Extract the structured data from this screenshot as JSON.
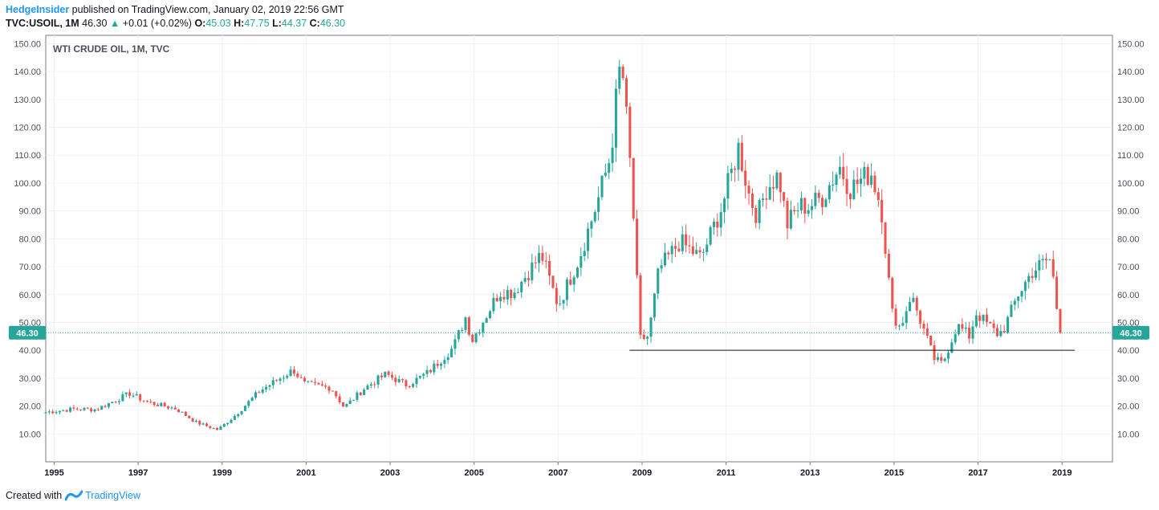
{
  "header": {
    "author": "HedgeInsider",
    "published": " published on TradingView.com, January 02, 2019 22:56 GMT",
    "symbol": "TVC:USOIL, 1M",
    "last": "46.30",
    "change_arrow": "▲",
    "change": "+0.01 (+0.02%)",
    "o_label": "O:",
    "o_value": "45.03",
    "h_label": "H:",
    "h_value": "47.75",
    "l_label": "L:",
    "l_value": "44.37",
    "c_label": "C:",
    "c_value": "46.30"
  },
  "footer": {
    "created_with": "Created with",
    "brand": "TradingView",
    "logo_icon": "tradingview-logo-icon"
  },
  "colors": {
    "up": "#26a69a",
    "down": "#ef5350",
    "grid": "#eef1f4",
    "axis": "#787b86",
    "price_line": "#26a69a",
    "support_line": "#131722",
    "author": "#2196f3"
  },
  "chart_data": {
    "type": "candlestick",
    "title": "WTI CRUDE OIL, 1M, TVC",
    "x_ticks": [
      "1995",
      "1997",
      "1999",
      "2001",
      "2003",
      "2005",
      "2007",
      "2009",
      "2011",
      "2013",
      "2015",
      "2017",
      "2019"
    ],
    "y_ticks": [
      "10.00",
      "20.00",
      "30.00",
      "40.00",
      "50.00",
      "60.00",
      "70.00",
      "80.00",
      "90.00",
      "100.00",
      "110.00",
      "120.00",
      "130.00",
      "140.00",
      "150.00"
    ],
    "ylim": [
      0,
      153
    ],
    "xlim": [
      1994.8,
      2020.2
    ],
    "grid": true,
    "last_price": 46.3,
    "last_price_label": "46.30",
    "support_line": {
      "value": 40,
      "from": 2008.7,
      "to": 2019.3
    },
    "anchors": [
      [
        1994.8,
        17.8
      ],
      [
        1995.5,
        19.0
      ],
      [
        1996.0,
        18.8
      ],
      [
        1996.8,
        24.5
      ],
      [
        1997.2,
        21.5
      ],
      [
        1997.9,
        19.0
      ],
      [
        1998.4,
        14.0
      ],
      [
        1998.9,
        11.5
      ],
      [
        1999.3,
        16.5
      ],
      [
        1999.9,
        25.5
      ],
      [
        2000.7,
        33.0
      ],
      [
        2000.95,
        28.0
      ],
      [
        2001.6,
        26.5
      ],
      [
        2001.9,
        19.5
      ],
      [
        2002.4,
        26.5
      ],
      [
        2002.9,
        31.5
      ],
      [
        2003.2,
        29.0
      ],
      [
        2003.4,
        27.5
      ],
      [
        2003.9,
        32.0
      ],
      [
        2004.5,
        41.0
      ],
      [
        2004.8,
        52.0
      ],
      [
        2004.95,
        43.5
      ],
      [
        2005.6,
        61.0
      ],
      [
        2005.95,
        61.0
      ],
      [
        2006.6,
        74.5
      ],
      [
        2007.0,
        56.0
      ],
      [
        2007.5,
        73.0
      ],
      [
        2007.95,
        94.0
      ],
      [
        2008.25,
        110.0
      ],
      [
        2008.45,
        140.0
      ],
      [
        2008.55,
        137.5
      ],
      [
        2008.75,
        100.0
      ],
      [
        2008.95,
        44.0
      ],
      [
        2009.15,
        45.0
      ],
      [
        2009.4,
        69.0
      ],
      [
        2009.9,
        79.0
      ],
      [
        2010.4,
        73.0
      ],
      [
        2010.9,
        91.5
      ],
      [
        2011.3,
        113.0
      ],
      [
        2011.55,
        95.5
      ],
      [
        2011.75,
        88.0
      ],
      [
        2011.95,
        98.0
      ],
      [
        2012.25,
        103.0
      ],
      [
        2012.45,
        85.0
      ],
      [
        2012.75,
        92.0
      ],
      [
        2012.95,
        91.5
      ],
      [
        2013.3,
        95.0
      ],
      [
        2013.7,
        106.0
      ],
      [
        2013.95,
        98.0
      ],
      [
        2014.45,
        104.0
      ],
      [
        2014.7,
        91.0
      ],
      [
        2014.95,
        53.5
      ],
      [
        2015.15,
        48.0
      ],
      [
        2015.4,
        60.0
      ],
      [
        2015.55,
        54.0
      ],
      [
        2015.75,
        45.5
      ],
      [
        2015.95,
        37.0
      ],
      [
        2016.15,
        35.0
      ],
      [
        2016.5,
        49.0
      ],
      [
        2016.8,
        45.0
      ],
      [
        2016.95,
        53.5
      ],
      [
        2017.45,
        46.0
      ],
      [
        2017.6,
        47.0
      ],
      [
        2017.95,
        60.0
      ],
      [
        2018.3,
        68.5
      ],
      [
        2018.7,
        73.0
      ],
      [
        2018.8,
        65.0
      ],
      [
        2018.95,
        45.5
      ],
      [
        2019.0,
        46.3
      ]
    ],
    "candle_spacing_years": 0.0833,
    "style": {
      "up_color": "#26a69a",
      "down_color": "#ef5350"
    }
  }
}
